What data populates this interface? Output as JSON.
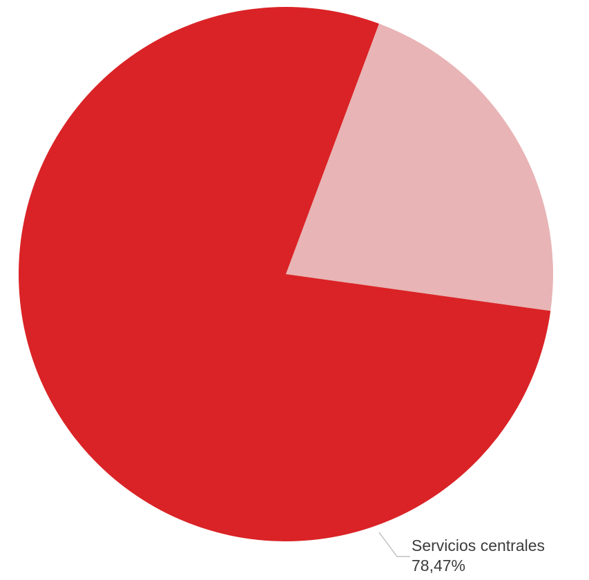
{
  "chart_data": {
    "type": "pie",
    "categories": [
      "",
      "Servicios centrales"
    ],
    "values": [
      21.53,
      78.47
    ],
    "value_labels": [
      "",
      "78,47%"
    ],
    "colors": [
      "#e8b4b5",
      "#da2326"
    ],
    "label_color": "#3c3c3c",
    "leader_color": "#b5b5b5",
    "start_angle_deg": 20.4,
    "title": "",
    "legend": "none"
  }
}
